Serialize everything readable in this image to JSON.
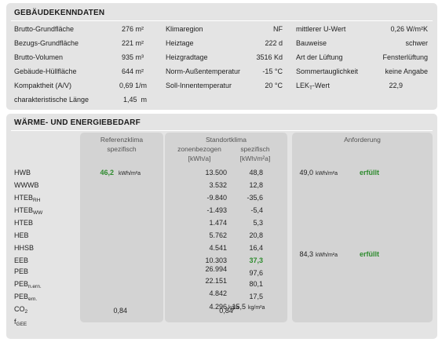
{
  "building": {
    "title": "GEBÄUDEKENNDATEN",
    "col1": [
      {
        "label": "Brutto-Grundfläche",
        "value": "276 m²"
      },
      {
        "label": "Bezugs-Grundfläche",
        "value": "221 m²"
      },
      {
        "label": "Brutto-Volumen",
        "value": "935 m³"
      },
      {
        "label": "Gebäude-Hüllfläche",
        "value": "644 m²"
      },
      {
        "label": "Kompaktheit (A/V)",
        "value": "0,69 1/m"
      },
      {
        "label": "charakteristische Länge",
        "value": "1,45  m"
      }
    ],
    "col2": [
      {
        "label": "Klimaregion",
        "value": "NF"
      },
      {
        "label": "Heiztage",
        "value": "222 d"
      },
      {
        "label": "Heizgradtage",
        "value": "3516 Kd"
      },
      {
        "label": "Norm-Außentemperatur",
        "value": "-15 °C"
      },
      {
        "label": "Soll-Innentemperatur",
        "value": "20 °C"
      }
    ],
    "col3": [
      {
        "label": "mittlerer U-Wert",
        "value": "0,26 W/m²K"
      },
      {
        "label": "Bauweise",
        "value": "schwer"
      },
      {
        "label": "Art der Lüftung",
        "value": "Fensterlüftung"
      },
      {
        "label": "Sommertauglichkeit",
        "value": "keine Angabe"
      },
      {
        "label_main": "LEK",
        "label_sub": "T",
        "label_tail": "-Wert",
        "value": "22,9"
      }
    ]
  },
  "energy": {
    "title": "WÄRME- UND ENERGIEBEDARF",
    "headers": {
      "ref_line1": "Referenzklima",
      "ref_line2": "spezifisch",
      "site_title": "Standortklima",
      "site_zone": "zonenbezogen",
      "site_spec": "spezifisch",
      "site_unit_a": "[kWh/a]",
      "site_unit_b": "[kWh/m²a]",
      "req": "Anforderung"
    },
    "rows": [
      {
        "main": "HWB",
        "sub": "",
        "ref": "46,2",
        "ref_unit": "kWh/m²a",
        "zone": "13.500",
        "spec": "48,8",
        "req": "49,0",
        "req_unit": "kWh/m²a",
        "req_status": "erfüllt"
      },
      {
        "main": "WWWB",
        "sub": "",
        "ref": "",
        "ref_unit": "",
        "zone": "3.532",
        "spec": "12,8",
        "req": "",
        "req_unit": "",
        "req_status": ""
      },
      {
        "main": "HTEB",
        "sub": "RH",
        "ref": "",
        "ref_unit": "",
        "zone": "-9.840",
        "spec": "-35,6",
        "req": "",
        "req_unit": "",
        "req_status": ""
      },
      {
        "main": "HTEB",
        "sub": "WW",
        "ref": "",
        "ref_unit": "",
        "zone": "-1.493",
        "spec": "-5,4",
        "req": "",
        "req_unit": "",
        "req_status": ""
      },
      {
        "main": "HTEB",
        "sub": "",
        "ref": "",
        "ref_unit": "",
        "zone": "1.474",
        "spec": "5,3",
        "req": "",
        "req_unit": "",
        "req_status": ""
      },
      {
        "main": "HEB",
        "sub": "",
        "ref": "",
        "ref_unit": "",
        "zone": "5.762",
        "spec": "20,8",
        "req": "",
        "req_unit": "",
        "req_status": ""
      },
      {
        "main": "HHSB",
        "sub": "",
        "ref": "",
        "ref_unit": "",
        "zone": "4.541",
        "spec": "16,4",
        "req": "",
        "req_unit": "",
        "req_status": ""
      },
      {
        "main": "EEB",
        "sub": "",
        "ref": "",
        "ref_unit": "",
        "zone": "10.303",
        "spec": "37,3",
        "req": "84,3",
        "req_unit": "kWh/m²a",
        "req_status": "erfüllt"
      },
      {
        "main": "PEB",
        "sub": "",
        "ref": "",
        "ref_unit": "",
        "zone": "26.994",
        "spec": "97,6",
        "req": "",
        "req_unit": "",
        "req_status": ""
      },
      {
        "main": "PEB",
        "sub": "n.ern.",
        "ref": "",
        "ref_unit": "",
        "zone": "22.151",
        "spec": "80,1",
        "req": "",
        "req_unit": "",
        "req_status": ""
      },
      {
        "main": "PEB",
        "sub": "ern.",
        "ref": "",
        "ref_unit": "",
        "zone": "4.842",
        "spec": "17,5",
        "req": "",
        "req_unit": "",
        "req_status": ""
      },
      {
        "main": "CO",
        "sub": "2",
        "ref": "",
        "ref_unit": "",
        "zone": "4.296",
        "zone_unit": "kg/a",
        "spec": "15,5",
        "spec_unit": "kg/m²a",
        "req": "",
        "req_unit": "",
        "req_status": ""
      },
      {
        "main": "f",
        "sub": "GEE",
        "ref": "0,84",
        "ref_unit": "",
        "zone": "",
        "spec": "",
        "site_center": "0,84",
        "req": "",
        "req_unit": "",
        "req_status": ""
      }
    ]
  }
}
